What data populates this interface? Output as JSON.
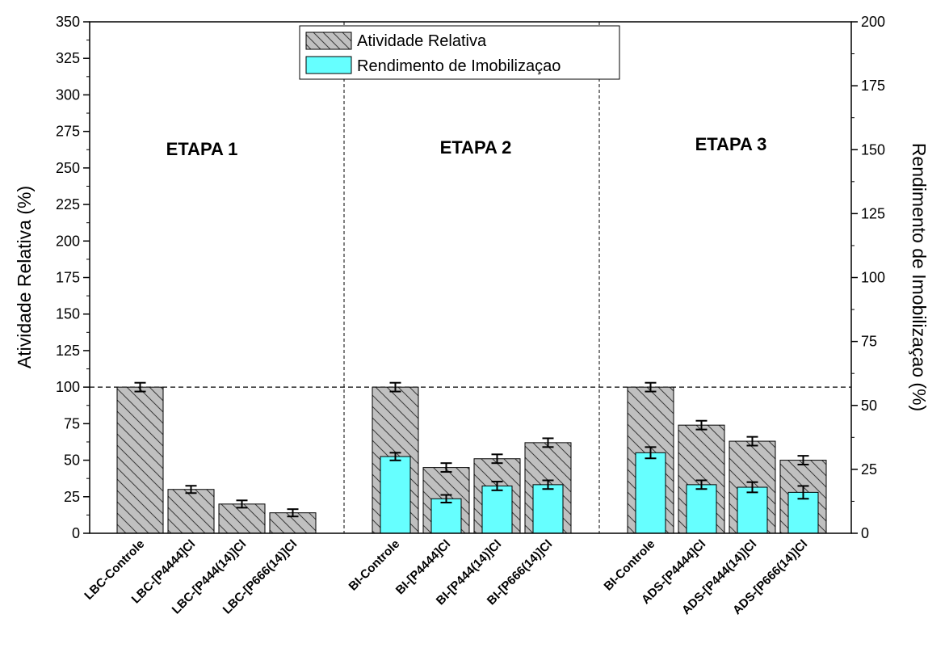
{
  "chart_data": {
    "type": "bar",
    "ylabel": "Atividade Relativa (%)",
    "y2label": "Rendimento de Imobilizaçao (%)",
    "ylim": [
      0,
      350
    ],
    "y2lim": [
      0,
      200
    ],
    "yticks": [
      0,
      25,
      50,
      75,
      100,
      125,
      150,
      175,
      200,
      225,
      250,
      275,
      300,
      325,
      350
    ],
    "y2ticks": [
      0,
      25,
      50,
      75,
      100,
      125,
      150,
      175,
      200
    ],
    "reference_line": 100,
    "legend_position": "top-center",
    "series": [
      {
        "name": "Atividade Relativa",
        "axis": "left",
        "pattern": "hatched",
        "color": "#c0c0c0"
      },
      {
        "name": "Rendimento de Imobilizaçao",
        "axis": "right",
        "color": "#66ffff"
      }
    ],
    "groups": [
      {
        "label": "ETAPA 1",
        "categories": [
          "LBC-Controle",
          "LBC-[P4444]Cl",
          "LBC-[P444(14)]Cl",
          "LBC-[P666(14)]Cl"
        ],
        "atividade": [
          100,
          30,
          20,
          14
        ],
        "atividade_err": [
          3,
          2.5,
          2.5,
          2.5
        ],
        "rendimento": [
          null,
          null,
          null,
          null
        ],
        "rendimento_err": [
          null,
          null,
          null,
          null
        ]
      },
      {
        "label": "ETAPA 2",
        "categories": [
          "BI-Controle",
          "BI-[P4444]Cl",
          "BI-[P444(14)]Cl",
          "BI-[P666(14)]Cl"
        ],
        "atividade": [
          100,
          45,
          51,
          62
        ],
        "atividade_err": [
          3,
          3,
          3,
          3
        ],
        "rendimento": [
          30,
          13.5,
          18.5,
          19
        ],
        "rendimento_err": [
          1.5,
          1.5,
          1.7,
          1.7
        ]
      },
      {
        "label": "ETAPA 3",
        "categories": [
          "BI-Controle",
          "ADS-[P4444]Cl",
          "ADS-[P444(14)]Cl",
          "ADS-[P666(14)]Cl"
        ],
        "atividade": [
          100,
          74,
          63,
          50
        ],
        "atividade_err": [
          3,
          3,
          3,
          3
        ],
        "rendimento": [
          31.5,
          19,
          18,
          16
        ],
        "rendimento_err": [
          2.2,
          1.7,
          2,
          2.5
        ]
      }
    ]
  }
}
